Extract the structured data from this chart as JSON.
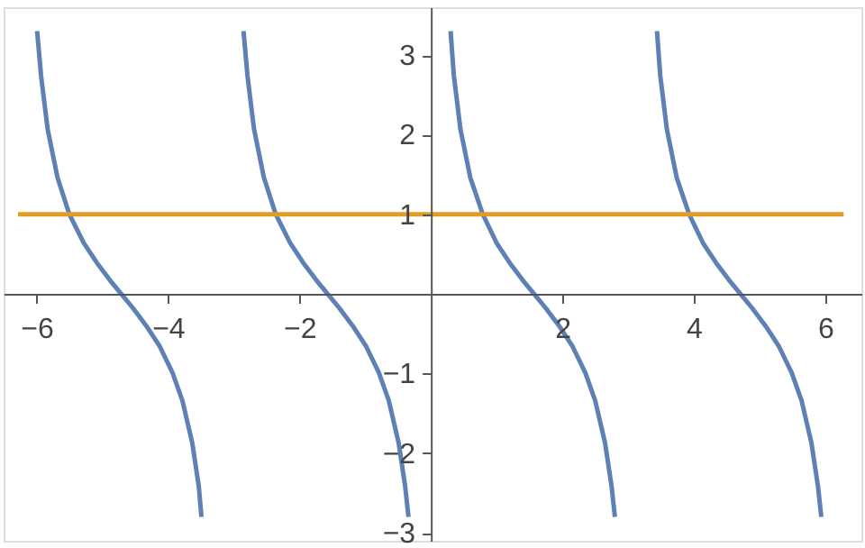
{
  "chart_data": {
    "type": "line",
    "xlim": [
      -6.5,
      6.55
    ],
    "ylim": [
      -3.1,
      3.6
    ],
    "xticks": [
      -6,
      -4,
      -2,
      2,
      4,
      6
    ],
    "yticks": [
      -3,
      -2,
      -1,
      1,
      2,
      3
    ],
    "grid": false,
    "legend": false,
    "series": [
      {
        "color": "#5e81b5",
        "x": [
          -5.99,
          -5.93,
          -5.83,
          -5.68,
          -5.5,
          -5.28,
          -5.08,
          -4.88,
          -4.71,
          -4.53,
          -4.33,
          -4.13,
          -3.93,
          -3.78,
          -3.63,
          -3.53,
          -3.49
        ],
        "values": [
          3.3,
          2.74,
          2.07,
          1.46,
          1,
          0.64,
          0.39,
          0.17,
          0,
          -0.18,
          -0.4,
          -0.65,
          -0.99,
          -1.34,
          -1.87,
          -2.42,
          -2.8
        ]
      },
      {
        "color": "#5e81b5",
        "x": [
          -2.85,
          -2.79,
          -2.69,
          -2.54,
          -2.36,
          -2.14,
          -1.94,
          -1.74,
          -1.57,
          -1.39,
          -1.19,
          -0.99,
          -0.79,
          -0.64,
          -0.49,
          -0.39,
          -0.34
        ],
        "values": [
          3.3,
          2.74,
          2.07,
          1.46,
          1,
          0.64,
          0.39,
          0.17,
          0,
          -0.18,
          -0.4,
          -0.65,
          -0.99,
          -1.34,
          -1.87,
          -2.42,
          -2.8
        ]
      },
      {
        "color": "#5e81b5",
        "x": [
          0.3,
          0.35,
          0.45,
          0.6,
          0.79,
          1.0,
          1.2,
          1.4,
          1.57,
          1.75,
          1.95,
          2.15,
          2.35,
          2.5,
          2.65,
          2.75,
          2.8
        ],
        "values": [
          3.3,
          2.74,
          2.07,
          1.46,
          1,
          0.64,
          0.39,
          0.17,
          0,
          -0.18,
          -0.4,
          -0.65,
          -0.99,
          -1.34,
          -1.87,
          -2.42,
          -2.8
        ]
      },
      {
        "color": "#5e81b5",
        "x": [
          3.44,
          3.49,
          3.59,
          3.74,
          3.93,
          4.14,
          4.34,
          4.54,
          4.71,
          4.89,
          5.09,
          5.29,
          5.49,
          5.64,
          5.79,
          5.89,
          5.94
        ],
        "values": [
          3.3,
          2.74,
          2.07,
          1.46,
          1,
          0.64,
          0.39,
          0.17,
          0,
          -0.18,
          -0.4,
          -0.65,
          -0.99,
          -1.34,
          -1.87,
          -2.42,
          -2.8
        ]
      },
      {
        "color": "#e19c24",
        "x": [
          -6.28,
          6.28
        ],
        "values": [
          1,
          1
        ]
      }
    ]
  }
}
